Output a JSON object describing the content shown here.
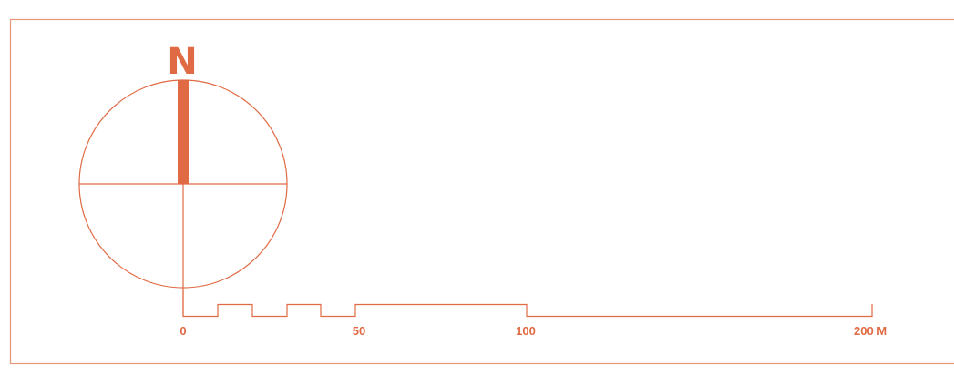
{
  "colors": {
    "accent": "#e06a43",
    "frame": "#e8987a"
  },
  "north_arrow": {
    "letter": "N"
  },
  "scale_bar": {
    "labels": [
      "0",
      "50",
      "100",
      "200 M"
    ]
  }
}
